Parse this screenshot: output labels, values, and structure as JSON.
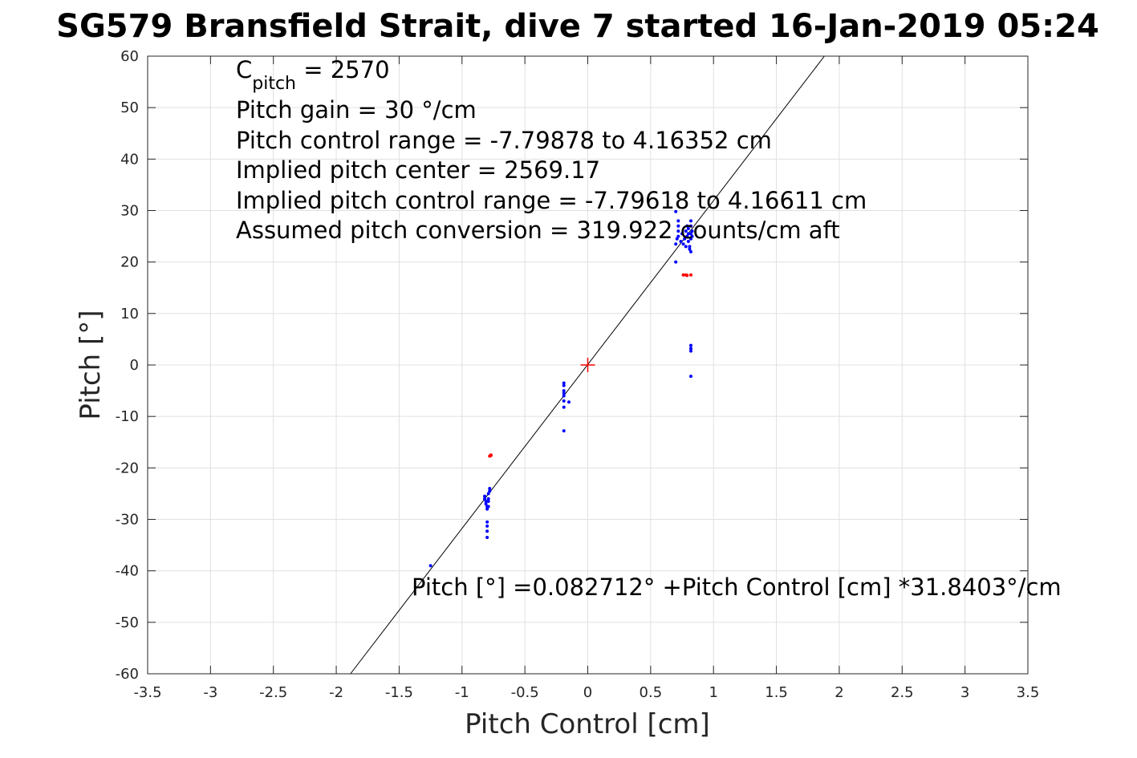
{
  "chart_data": {
    "type": "scatter",
    "title": "SG579 Bransfield Strait, dive 7 started 16-Jan-2019 05:24",
    "xlabel": "Pitch Control [cm]",
    "ylabel": "Pitch [°]",
    "xlim": [
      -3.5,
      3.5
    ],
    "ylim": [
      -60,
      60
    ],
    "xticks": [
      -3.5,
      -3,
      -2.5,
      -2,
      -1.5,
      -1,
      -0.5,
      0,
      0.5,
      1,
      1.5,
      2,
      2.5,
      3,
      3.5
    ],
    "xtick_labels": [
      "-3.5",
      "-3",
      "-2.5",
      "-2",
      "-1.5",
      "-1",
      "-0.5",
      "0",
      "0.5",
      "1",
      "1.5",
      "2",
      "2.5",
      "3",
      "3.5"
    ],
    "yticks": [
      -60,
      -50,
      -40,
      -30,
      -20,
      -10,
      0,
      10,
      20,
      30,
      40,
      50,
      60
    ],
    "ytick_labels": [
      "-60",
      "-50",
      "-40",
      "-30",
      "-20",
      "-10",
      "0",
      "10",
      "20",
      "30",
      "40",
      "50",
      "60"
    ],
    "grid": true,
    "annotations": {
      "cpitch_symbol": "C",
      "cpitch_subscript": "pitch",
      "cpitch_value": " = 2570",
      "gain": "Pitch gain = 30 °/cm",
      "control_range": "Pitch control range = -7.79878 to 4.16352 cm",
      "implied_center": "Implied pitch center = 2569.17",
      "implied_range": "Implied pitch control range = -7.79618 to 4.16611 cm",
      "conversion": "Assumed pitch conversion = 319.922 counts/cm aft",
      "fit_equation": "Pitch [°] =0.082712° +Pitch Control [cm] *31.8403°/cm"
    },
    "fit_line": {
      "intercept": 0.082712,
      "slope": 31.8403,
      "color": "#000000"
    },
    "center_marker": {
      "x": 0,
      "y": 0,
      "color": "#ff0000"
    },
    "series": [
      {
        "color": "#0000ff",
        "points": [
          [
            -1.25,
            -39
          ],
          [
            -0.82,
            -25.5
          ],
          [
            -0.82,
            -26
          ],
          [
            -0.81,
            -26.5
          ],
          [
            -0.81,
            -27
          ],
          [
            -0.8,
            -27.5
          ],
          [
            -0.8,
            -28
          ],
          [
            -0.79,
            -25
          ],
          [
            -0.79,
            -26.5
          ],
          [
            -0.79,
            -27.5
          ],
          [
            -0.78,
            -24
          ],
          [
            -0.78,
            -24.5
          ],
          [
            -0.8,
            -30.5
          ],
          [
            -0.8,
            -31.3
          ],
          [
            -0.8,
            -32.3
          ],
          [
            -0.8,
            -33.5
          ],
          [
            -0.79,
            -26
          ],
          [
            -0.19,
            -3.5
          ],
          [
            -0.19,
            -4
          ],
          [
            -0.19,
            -5
          ],
          [
            -0.19,
            -5.5
          ],
          [
            -0.19,
            -6
          ],
          [
            -0.19,
            -7
          ],
          [
            -0.19,
            -8.2
          ],
          [
            -0.15,
            -7.2
          ],
          [
            -0.19,
            -12.8
          ],
          [
            0.7,
            20
          ],
          [
            0.7,
            23.5
          ],
          [
            0.71,
            24.5
          ],
          [
            0.72,
            25
          ],
          [
            0.72,
            26
          ],
          [
            0.72,
            27
          ],
          [
            0.72,
            28
          ],
          [
            0.7,
            29.8
          ],
          [
            0.74,
            24
          ],
          [
            0.75,
            25.5
          ],
          [
            0.76,
            23.5
          ],
          [
            0.77,
            24.5
          ],
          [
            0.78,
            26
          ],
          [
            0.78,
            23
          ],
          [
            0.79,
            25
          ],
          [
            0.79,
            27
          ],
          [
            0.8,
            24
          ],
          [
            0.8,
            25.5
          ],
          [
            0.8,
            26.5
          ],
          [
            0.81,
            23
          ],
          [
            0.81,
            22.5
          ],
          [
            0.82,
            24.5
          ],
          [
            0.82,
            25.5
          ],
          [
            0.82,
            27
          ],
          [
            0.82,
            28
          ],
          [
            0.82,
            22
          ],
          [
            0.83,
            26
          ],
          [
            0.83,
            25
          ],
          [
            0.82,
            3.8
          ],
          [
            0.82,
            3.2
          ],
          [
            0.82,
            2.7
          ],
          [
            0.82,
            -2.2
          ]
        ]
      },
      {
        "color": "#ff0000",
        "points": [
          [
            -0.77,
            -17.5
          ],
          [
            -0.78,
            -17.7
          ],
          [
            -0.77,
            -17.6
          ],
          [
            0.76,
            17.5
          ],
          [
            0.78,
            17.5
          ],
          [
            0.79,
            17.4
          ],
          [
            0.82,
            17.5
          ]
        ]
      }
    ]
  }
}
